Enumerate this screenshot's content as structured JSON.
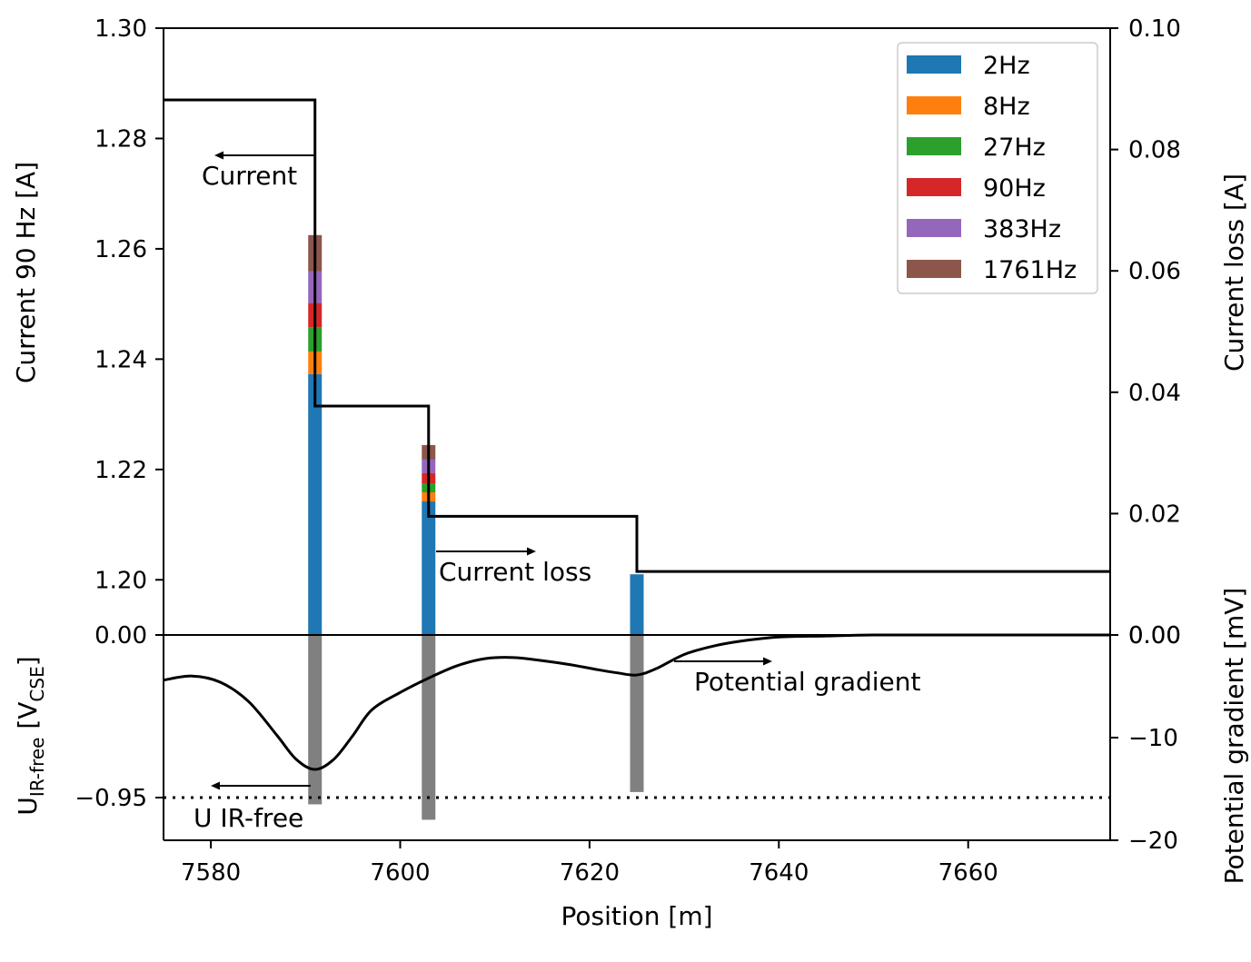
{
  "chart_data": {
    "type": "line",
    "xlabel": "Position [m]",
    "xlim": [
      7575,
      7675
    ],
    "x_ticks": [
      "7580",
      "7600",
      "7620",
      "7640",
      "7660"
    ],
    "top": {
      "left_axis": {
        "label": "Current 90 Hz [A]",
        "ylim": [
          1.19,
          1.3
        ],
        "ticks": [
          "1.20",
          "1.22",
          "1.24",
          "1.26",
          "1.28",
          "1.30"
        ]
      },
      "right_axis": {
        "label": "Current loss [A]",
        "ylim": [
          0.0,
          0.1
        ],
        "ticks": [
          "0.00",
          "0.02",
          "0.04",
          "0.06",
          "0.08",
          "0.10"
        ]
      },
      "current_series": {
        "name": "Current",
        "steps": [
          {
            "x_start": 7575,
            "x_end": 7591,
            "y": 1.287
          },
          {
            "x_start": 7591,
            "x_end": 7603,
            "y": 1.2315
          },
          {
            "x_start": 7603,
            "x_end": 7625,
            "y": 1.2115
          },
          {
            "x_start": 7625,
            "x_end": 7675,
            "y": 1.2015
          }
        ]
      },
      "current_loss": {
        "name": "Current loss",
        "frequencies": [
          "2Hz",
          "8Hz",
          "27Hz",
          "90Hz",
          "383Hz",
          "1761Hz"
        ],
        "colors": [
          "#1f77b4",
          "#ff7f0e",
          "#2ca02c",
          "#d62728",
          "#9467bd",
          "#8c564b"
        ],
        "bars": [
          {
            "x": 7591,
            "values": [
              0.043,
              0.0037,
              0.004,
              0.004,
              0.0052,
              0.006
            ]
          },
          {
            "x": 7603,
            "values": [
              0.022,
              0.0015,
              0.0015,
              0.0017,
              0.0022,
              0.0024
            ]
          },
          {
            "x": 7625,
            "values": [
              0.01,
              0,
              0,
              0,
              0,
              0
            ]
          }
        ]
      },
      "legend_position": "top-right"
    },
    "bottom": {
      "left_axis": {
        "label_main": "U",
        "label_sub": "IR-free",
        "label_bracket": " [V",
        "label_sub2": "CSE",
        "label_end": "]",
        "tick_labels": [
          {
            "label": "0.00",
            "value": 0
          },
          {
            "label": "−0.95",
            "value": -0.95
          }
        ],
        "threshold": {
          "name": "U IR-free",
          "value": -0.95
        }
      },
      "right_axis": {
        "label": "Potential gradient [mV]",
        "ylim": [
          -20,
          0
        ],
        "ticks": [
          "0.00",
          "−10",
          "−20"
        ]
      },
      "gray_bars": [
        {
          "x": 7591,
          "y": -16.5
        },
        {
          "x": 7603,
          "y": -18.0
        },
        {
          "x": 7625,
          "y": -15.3
        }
      ],
      "gradient_series": {
        "name": "Potential gradient",
        "x": [
          7575,
          7578,
          7581,
          7584,
          7587,
          7589,
          7591,
          7593,
          7595,
          7597,
          7600,
          7603,
          7606,
          7609,
          7612,
          7615,
          7618,
          7621,
          7623,
          7625,
          7627,
          7630,
          7633,
          7636,
          7640,
          7645,
          7650,
          7660,
          7675
        ],
        "y": [
          -4.4,
          -4.0,
          -4.6,
          -6.5,
          -9.8,
          -12.1,
          -13.1,
          -12.1,
          -9.8,
          -7.3,
          -5.6,
          -4.2,
          -3.0,
          -2.3,
          -2.2,
          -2.5,
          -2.9,
          -3.4,
          -3.7,
          -3.9,
          -3.3,
          -1.9,
          -1.1,
          -0.6,
          -0.2,
          -0.1,
          0.0,
          0.0,
          0.0
        ]
      }
    },
    "annotations": {
      "current": "Current",
      "current_loss": "Current loss",
      "potential_gradient": "Potential gradient",
      "u_ir_free": "U IR-free"
    }
  }
}
